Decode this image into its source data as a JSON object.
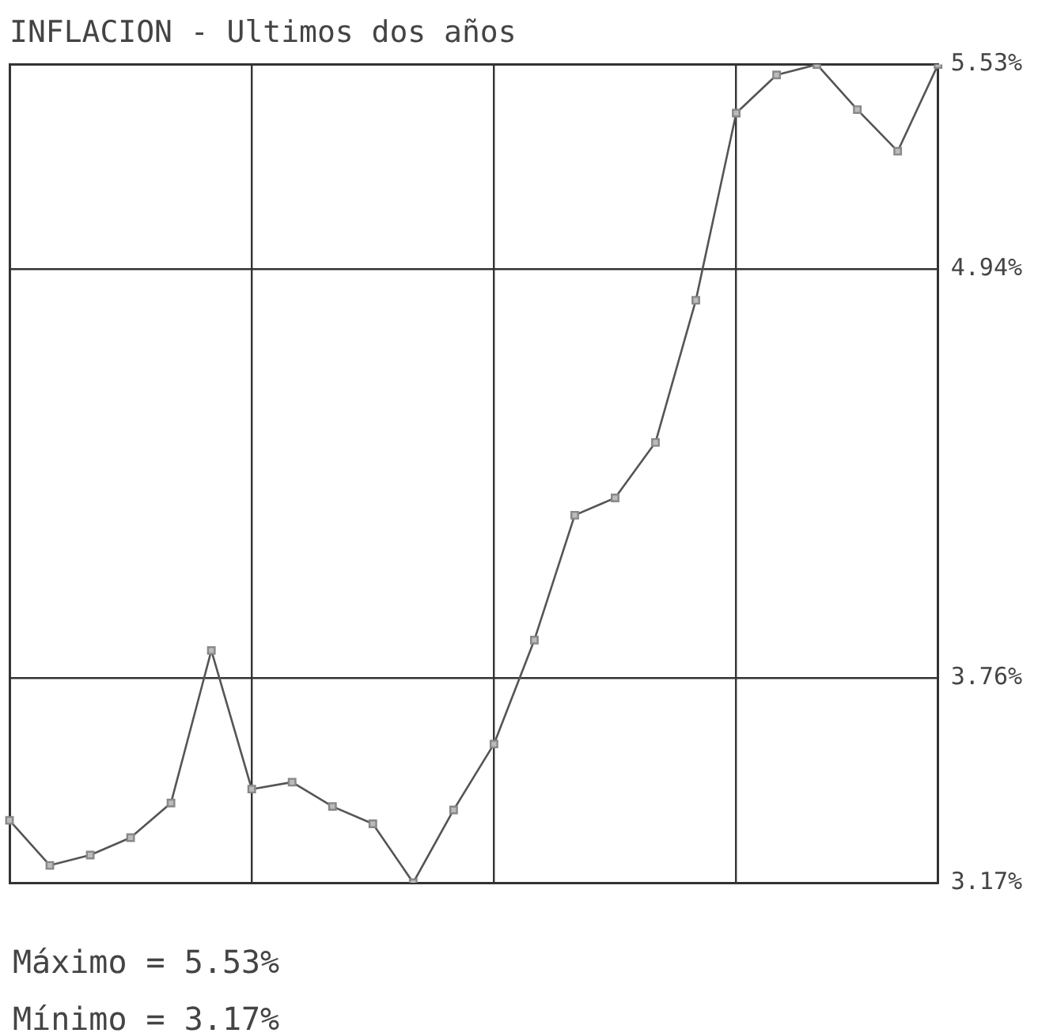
{
  "chart_data": {
    "type": "line",
    "title": "INFLACION - Ultimos dos años",
    "categories": [
      null,
      null,
      null,
      null,
      null,
      null,
      null,
      null,
      null,
      null,
      null,
      null,
      null,
      null,
      null,
      null,
      null,
      null,
      null,
      null,
      null,
      null,
      null,
      null
    ],
    "series": [
      {
        "color": "#555555",
        "values": [
          3.35,
          3.22,
          3.25,
          3.3,
          3.4,
          3.84,
          3.44,
          3.46,
          3.39,
          3.34,
          3.17,
          3.38,
          3.57,
          3.87,
          4.23,
          4.28,
          4.44,
          4.85,
          5.39,
          5.5,
          5.53,
          5.4,
          5.28,
          5.53
        ]
      }
    ],
    "ylim": [
      3.17,
      5.53
    ],
    "yticks": [
      {
        "value": 3.17,
        "label": "3.17%"
      },
      {
        "value": 3.76,
        "label": "3.76%"
      },
      {
        "value": 4.94,
        "label": "4.94%"
      },
      {
        "value": 5.53,
        "label": "5.53%"
      }
    ],
    "tick_labels": "y",
    "grid": true,
    "legend": false,
    "marker": "square",
    "line_style": "solid",
    "annotations": [
      "Máximo = 5.53%",
      "Mínimo = 3.17%"
    ]
  }
}
